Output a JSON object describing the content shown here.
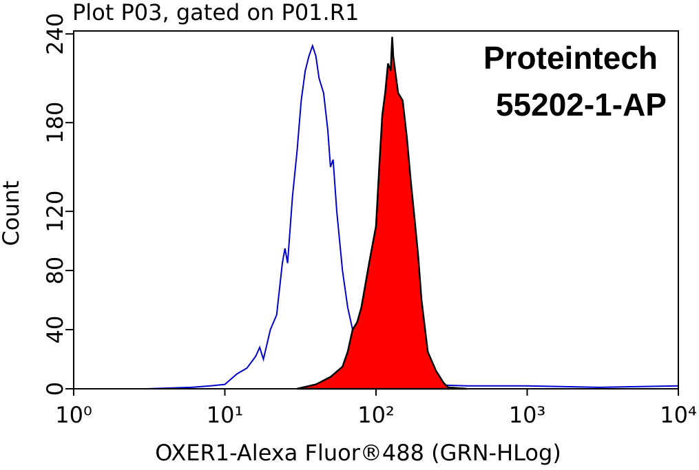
{
  "chart_data": {
    "type": "histogram-overlay",
    "title": "Plot P03, gated on P01.R1",
    "annotations": [
      "Proteintech",
      "55202-1-AP"
    ],
    "x_label": "OXER1-Alexa Fluor®488 (GRN-HLog)",
    "y_label": "Count",
    "xscale": "log",
    "xlim": [
      1,
      10000
    ],
    "xticks": [
      {
        "value": 1,
        "label": "10⁰"
      },
      {
        "value": 10,
        "label": "10¹"
      },
      {
        "value": 100,
        "label": "10²"
      },
      {
        "value": 1000,
        "label": "10³"
      },
      {
        "value": 10000,
        "label": "10⁴"
      }
    ],
    "ylim": [
      0,
      242
    ],
    "yticks": [
      0,
      40,
      80,
      120,
      180,
      240
    ],
    "series": [
      {
        "color": "#0000cc",
        "fill": false,
        "x": [
          1,
          3,
          6,
          8,
          10,
          12,
          14,
          16,
          17,
          18,
          20,
          22,
          24,
          25,
          26,
          28,
          30,
          32,
          34,
          36,
          38,
          40,
          42,
          45,
          48,
          50,
          52,
          55,
          60,
          65,
          70,
          80,
          100,
          130,
          200,
          400,
          1000,
          3000,
          10000
        ],
        "values": [
          0,
          0,
          1,
          2,
          3,
          10,
          14,
          22,
          28,
          20,
          40,
          50,
          85,
          95,
          85,
          130,
          160,
          195,
          215,
          225,
          232,
          225,
          210,
          200,
          175,
          150,
          155,
          120,
          80,
          55,
          40,
          20,
          10,
          5,
          3,
          2,
          2,
          1,
          2
        ]
      },
      {
        "color": "#ff0000",
        "fill": true,
        "x": [
          30,
          40,
          50,
          60,
          65,
          70,
          75,
          80,
          90,
          100,
          105,
          110,
          115,
          120,
          125,
          128,
          130,
          140,
          150,
          160,
          170,
          180,
          190,
          200,
          220,
          250,
          280,
          300,
          400
        ],
        "values": [
          0,
          3,
          8,
          15,
          25,
          40,
          45,
          55,
          85,
          110,
          150,
          185,
          200,
          220,
          215,
          238,
          225,
          200,
          195,
          170,
          140,
          115,
          90,
          60,
          25,
          12,
          4,
          1,
          0
        ]
      }
    ]
  }
}
